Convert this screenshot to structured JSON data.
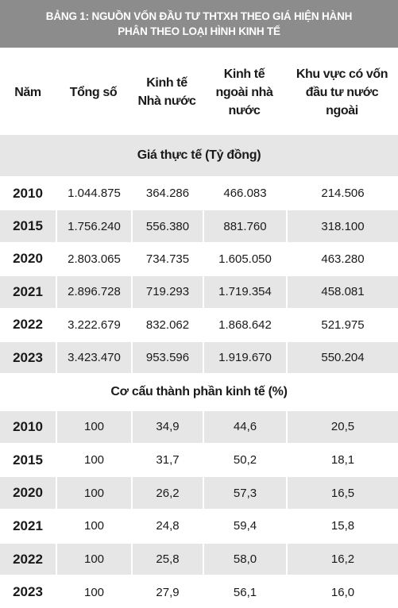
{
  "title": [
    "BẢNG 1: NGUỒN VỐN ĐẦU TƯ THTXH THEO GIÁ HIỆN HÀNH",
    "PHÂN THEO LOẠI HÌNH KINH TẾ"
  ],
  "columns": [
    [
      "Năm"
    ],
    [
      "Tổng số"
    ],
    [
      "Kinh tế",
      "Nhà nước"
    ],
    [
      "Kinh tế",
      "ngoài nhà",
      "nước"
    ],
    [
      "Khu vực có vốn",
      "đầu tư nước",
      "ngoài"
    ]
  ],
  "sections": [
    {
      "label": "Giá thực tế (Tỷ đồng)",
      "rows": [
        [
          "2010",
          "1.044.875",
          "364.286",
          "466.083",
          "214.506"
        ],
        [
          "2015",
          "1.756.240",
          "556.380",
          "881.760",
          "318.100"
        ],
        [
          "2020",
          "2.803.065",
          "734.735",
          "1.605.050",
          "463.280"
        ],
        [
          "2021",
          "2.896.728",
          "719.293",
          "1.719.354",
          "458.081"
        ],
        [
          "2022",
          "3.222.679",
          "832.062",
          "1.868.642",
          "521.975"
        ],
        [
          "2023",
          "3.423.470",
          "953.596",
          "1.919.670",
          "550.204"
        ]
      ]
    },
    {
      "label": "Cơ cấu thành phần kinh tế (%)",
      "rows": [
        [
          "2010",
          "100",
          "34,9",
          "44,6",
          "20,5"
        ],
        [
          "2015",
          "100",
          "31,7",
          "50,2",
          "18,1"
        ],
        [
          "2020",
          "100",
          "26,2",
          "57,3",
          "16,5"
        ],
        [
          "2021",
          "100",
          "24,8",
          "59,4",
          "15,8"
        ],
        [
          "2022",
          "100",
          "25,8",
          "58,0",
          "16,2"
        ],
        [
          "2023",
          "100",
          "27,9",
          "56,1",
          "16,0"
        ]
      ]
    }
  ]
}
